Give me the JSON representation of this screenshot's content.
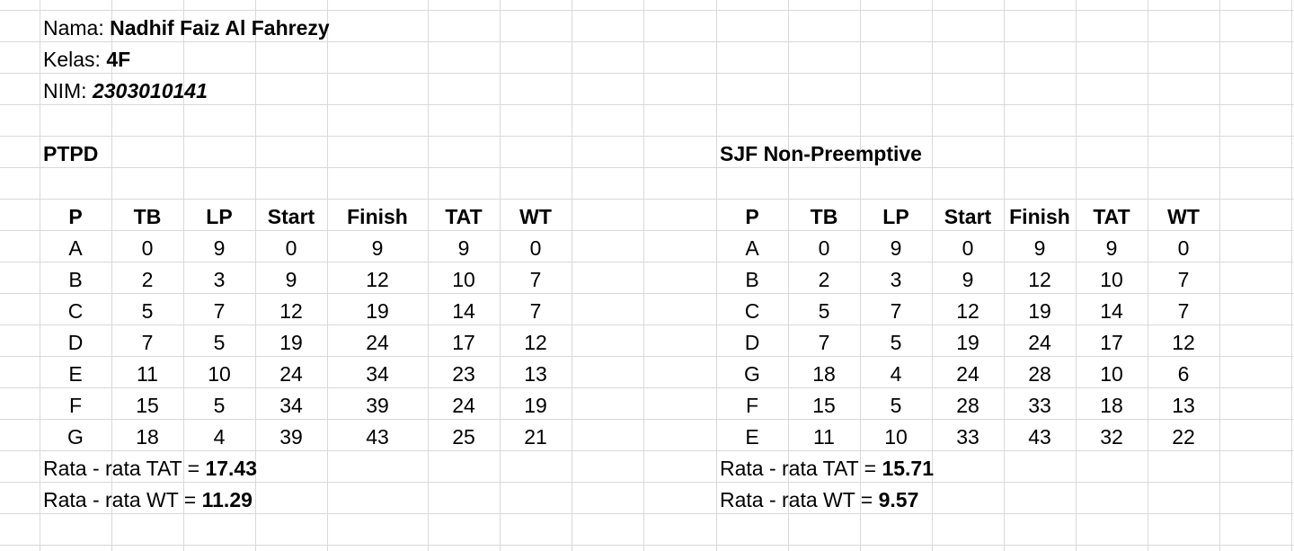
{
  "header": {
    "nama_label": "Nama: ",
    "nama_value": "Nadhif Faiz  Al Fahrezy",
    "kelas_label": "Kelas: ",
    "kelas_value": "4F",
    "nim_label": "NIM: ",
    "nim_value": "2303010141"
  },
  "tables": [
    {
      "title": "PTPD",
      "columns": [
        "P",
        "TB",
        "LP",
        "Start",
        "Finish",
        "TAT",
        "WT"
      ],
      "rows": [
        [
          "A",
          "0",
          "9",
          "0",
          "9",
          "9",
          "0"
        ],
        [
          "B",
          "2",
          "3",
          "9",
          "12",
          "10",
          "7"
        ],
        [
          "C",
          "5",
          "7",
          "12",
          "19",
          "14",
          "7"
        ],
        [
          "D",
          "7",
          "5",
          "19",
          "24",
          "17",
          "12"
        ],
        [
          "E",
          "11",
          "10",
          "24",
          "34",
          "23",
          "13"
        ],
        [
          "F",
          "15",
          "5",
          "34",
          "39",
          "24",
          "19"
        ],
        [
          "G",
          "18",
          "4",
          "39",
          "43",
          "25",
          "21"
        ]
      ],
      "avg_tat_label": "Rata - rata TAT = ",
      "avg_tat_value": "17.43",
      "avg_wt_label": "Rata - rata WT = ",
      "avg_wt_value": "11.29"
    },
    {
      "title": "SJF Non-Preemptive",
      "columns": [
        "P",
        "TB",
        "LP",
        "Start",
        "Finish",
        "TAT",
        "WT"
      ],
      "rows": [
        [
          "A",
          "0",
          "9",
          "0",
          "9",
          "9",
          "0"
        ],
        [
          "B",
          "2",
          "3",
          "9",
          "12",
          "10",
          "7"
        ],
        [
          "C",
          "5",
          "7",
          "12",
          "19",
          "14",
          "7"
        ],
        [
          "D",
          "7",
          "5",
          "19",
          "24",
          "17",
          "12"
        ],
        [
          "G",
          "18",
          "4",
          "24",
          "28",
          "10",
          "6"
        ],
        [
          "F",
          "15",
          "5",
          "28",
          "33",
          "18",
          "13"
        ],
        [
          "E",
          "11",
          "10",
          "33",
          "43",
          "32",
          "22"
        ]
      ],
      "avg_tat_label": "Rata - rata TAT = ",
      "avg_tat_value": "15.71",
      "avg_wt_label": "Rata - rata WT = ",
      "avg_wt_value": "9.57"
    }
  ]
}
